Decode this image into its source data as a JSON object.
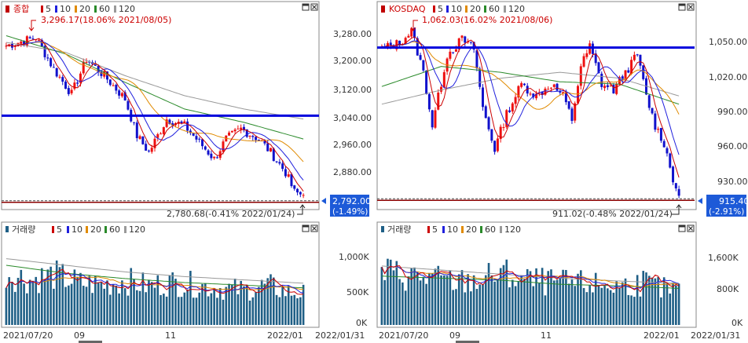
{
  "colors": {
    "ma5": "#cc0000",
    "ma10": "#2020dd",
    "ma20": "#e08a00",
    "ma60": "#2a8a2a",
    "ma120": "#999999",
    "up": "#ee1111",
    "down": "#1111cc",
    "volume": "#1f5f86",
    "resistance": "#0000dd",
    "support": "#8b0000"
  },
  "legend": {
    "ma_labels": [
      "5",
      "10",
      "20",
      "60",
      "120"
    ],
    "volume_title": "거래량"
  },
  "panels": [
    {
      "title": "종합",
      "high_label": "3,296.17(18.06% 2021/08/05)",
      "low_label": "2,780.68(-0.41% 2022/01/24)",
      "current_price": "2,792.00",
      "current_change": "(-1.49%)",
      "price_ticks": [
        "3,280.00",
        "3,200.00",
        "3,120.00",
        "3,040.00",
        "2,960.00",
        "2,880.00"
      ],
      "volume_ticks": [
        "1,000K",
        "500K",
        "0K"
      ],
      "x_labels": [
        "2021/07/20",
        "09",
        "11",
        "2022/01",
        "2022/01/31"
      ]
    },
    {
      "title": "KOSDAQ",
      "high_label": "1,062.03(16.02% 2021/08/06)",
      "low_label": "911.02(-0.48% 2022/01/24)",
      "current_price": "915.40",
      "current_change": "(-2.91%)",
      "price_ticks": [
        "1,050.00",
        "1,020.00",
        "990.00",
        "960.00",
        "930.00"
      ],
      "volume_ticks": [
        "1,600K",
        "800K",
        "0K"
      ],
      "x_labels": [
        "2021/07/20",
        "09",
        "11",
        "2022/01",
        "2022/01/31"
      ]
    }
  ],
  "chart_data": [
    {
      "type": "candlestick",
      "title": "종합",
      "ylim": [
        2760,
        3330
      ],
      "horizontal_lines": [
        3030,
        2770
      ],
      "high": {
        "value": 3296.17,
        "change_pct": 18.06,
        "date": "2021/08/05"
      },
      "low": {
        "value": 2780.68,
        "change_pct": -0.41,
        "date": "2022/01/24"
      },
      "current": {
        "value": 2792.0,
        "change_pct": -1.49
      },
      "close_anchors": [
        [
          0,
          3240
        ],
        [
          6,
          3255
        ],
        [
          10,
          3265
        ],
        [
          16,
          3170
        ],
        [
          22,
          3095
        ],
        [
          27,
          3200
        ],
        [
          33,
          3150
        ],
        [
          40,
          3080
        ],
        [
          44,
          2970
        ],
        [
          48,
          2920
        ],
        [
          54,
          3020
        ],
        [
          60,
          3000
        ],
        [
          66,
          2940
        ],
        [
          70,
          2900
        ],
        [
          74,
          2960
        ],
        [
          79,
          2990
        ],
        [
          85,
          2960
        ],
        [
          89,
          2920
        ],
        [
          94,
          2860
        ],
        [
          97,
          2800
        ],
        [
          100,
          2792
        ]
      ],
      "ma120_anchors": [
        [
          0,
          3250
        ],
        [
          20,
          3220
        ],
        [
          40,
          3150
        ],
        [
          60,
          3090
        ],
        [
          80,
          3050
        ],
        [
          100,
          3020
        ]
      ],
      "ma60_anchors": [
        [
          0,
          3270
        ],
        [
          20,
          3215
        ],
        [
          40,
          3130
        ],
        [
          60,
          3050
        ],
        [
          80,
          3010
        ],
        [
          100,
          2960
        ]
      ],
      "volume_ylim": [
        0,
        1350
      ],
      "volume_anchors": [
        [
          0,
          750
        ],
        [
          8,
          650
        ],
        [
          16,
          720
        ],
        [
          25,
          600
        ],
        [
          33,
          580
        ],
        [
          40,
          640
        ],
        [
          48,
          560
        ],
        [
          55,
          610
        ],
        [
          63,
          580
        ],
        [
          70,
          540
        ],
        [
          80,
          500
        ],
        [
          88,
          570
        ],
        [
          94,
          480
        ],
        [
          100,
          450
        ]
      ],
      "volume_ma_anchors": [
        [
          0,
          900
        ],
        [
          20,
          780
        ],
        [
          40,
          700
        ],
        [
          60,
          640
        ],
        [
          80,
          600
        ],
        [
          100,
          560
        ]
      ],
      "volume_ma_long_anchors": [
        [
          0,
          1000
        ],
        [
          20,
          900
        ],
        [
          40,
          800
        ],
        [
          60,
          730
        ],
        [
          80,
          680
        ],
        [
          100,
          630
        ]
      ]
    },
    {
      "type": "candlestick",
      "title": "KOSDAQ",
      "ylim": [
        907,
        1068
      ],
      "horizontal_lines": [
        1041,
        911.5
      ],
      "high": {
        "value": 1062.03,
        "change_pct": 16.02,
        "date": "2021/08/06"
      },
      "low": {
        "value": 911.02,
        "change_pct": -0.48,
        "date": "2022/01/24"
      },
      "current": {
        "value": 915.4,
        "change_pct": -2.91
      },
      "close_anchors": [
        [
          0,
          1040
        ],
        [
          6,
          1045
        ],
        [
          10,
          1055
        ],
        [
          14,
          1020
        ],
        [
          17,
          975
        ],
        [
          22,
          1035
        ],
        [
          27,
          1048
        ],
        [
          31,
          1040
        ],
        [
          34,
          990
        ],
        [
          38,
          955
        ],
        [
          42,
          985
        ],
        [
          47,
          1010
        ],
        [
          52,
          1000
        ],
        [
          57,
          1010
        ],
        [
          61,
          1000
        ],
        [
          64,
          980
        ],
        [
          67,
          1025
        ],
        [
          70,
          1042
        ],
        [
          74,
          1010
        ],
        [
          78,
          1005
        ],
        [
          82,
          1020
        ],
        [
          86,
          1035
        ],
        [
          89,
          1000
        ],
        [
          92,
          975
        ],
        [
          95,
          960
        ],
        [
          98,
          930
        ],
        [
          100,
          915
        ]
      ],
      "ma120_anchors": [
        [
          0,
          993
        ],
        [
          20,
          1005
        ],
        [
          40,
          1015
        ],
        [
          60,
          1020
        ],
        [
          80,
          1015
        ],
        [
          100,
          1000
        ]
      ],
      "ma60_anchors": [
        [
          0,
          1008
        ],
        [
          20,
          1025
        ],
        [
          40,
          1020
        ],
        [
          60,
          1012
        ],
        [
          80,
          1010
        ],
        [
          100,
          993
        ]
      ],
      "volume_ylim": [
        0,
        2200
      ],
      "volume_anchors": [
        [
          0,
          1250
        ],
        [
          8,
          1150
        ],
        [
          16,
          1100
        ],
        [
          25,
          1000
        ],
        [
          33,
          1050
        ],
        [
          40,
          1200
        ],
        [
          48,
          1050
        ],
        [
          55,
          1000
        ],
        [
          63,
          980
        ],
        [
          70,
          950
        ],
        [
          80,
          900
        ],
        [
          88,
          1000
        ],
        [
          94,
          850
        ],
        [
          100,
          800
        ]
      ],
      "volume_ma_anchors": [
        [
          0,
          1200
        ],
        [
          20,
          1150
        ],
        [
          40,
          1100
        ],
        [
          60,
          1000
        ],
        [
          80,
          960
        ],
        [
          100,
          900
        ]
      ],
      "volume_ma_long_anchors": [
        [
          0,
          1450
        ],
        [
          20,
          1350
        ],
        [
          40,
          1250
        ],
        [
          60,
          1150
        ],
        [
          80,
          1080
        ],
        [
          100,
          1020
        ]
      ]
    }
  ]
}
